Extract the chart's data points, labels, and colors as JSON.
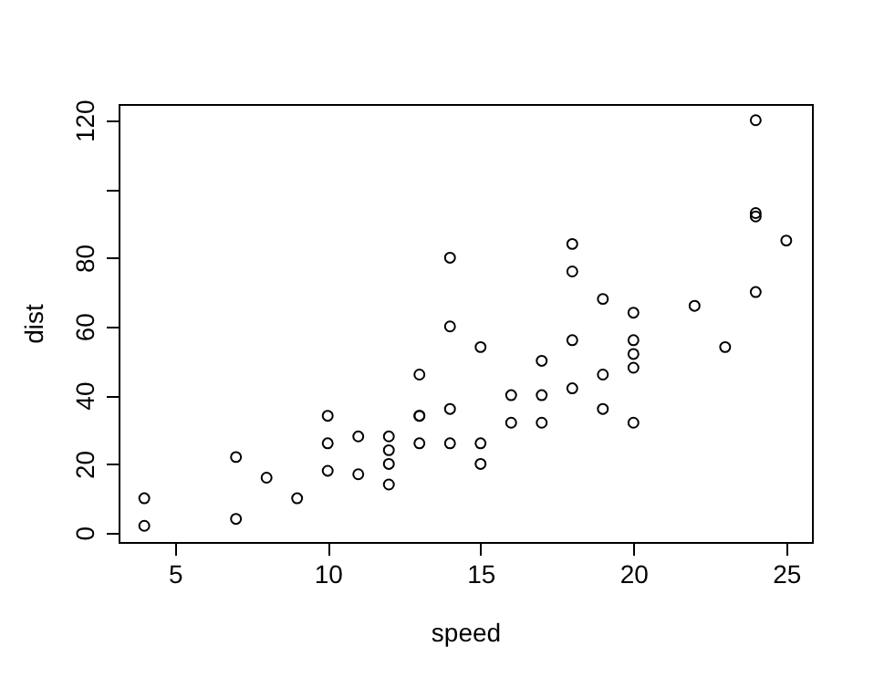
{
  "chart_data": {
    "type": "scatter",
    "xlabel": "speed",
    "ylabel": "dist",
    "marker": "circle",
    "grid": false,
    "x": [
      4,
      4,
      7,
      7,
      8,
      9,
      10,
      10,
      10,
      11,
      11,
      12,
      12,
      12,
      12,
      13,
      13,
      13,
      13,
      14,
      14,
      14,
      14,
      15,
      15,
      15,
      16,
      16,
      17,
      17,
      17,
      18,
      18,
      18,
      18,
      19,
      19,
      19,
      20,
      20,
      20,
      20,
      20,
      22,
      23,
      24,
      24,
      24,
      24,
      25
    ],
    "series": [
      {
        "color": "#000000",
        "values": [
          2,
          10,
          4,
          22,
          16,
          10,
          18,
          26,
          34,
          17,
          28,
          14,
          20,
          24,
          28,
          26,
          34,
          34,
          46,
          26,
          36,
          60,
          80,
          20,
          26,
          54,
          32,
          40,
          32,
          40,
          50,
          42,
          56,
          76,
          84,
          36,
          46,
          68,
          32,
          48,
          52,
          56,
          64,
          66,
          54,
          70,
          92,
          93,
          120,
          85
        ]
      }
    ],
    "xlim": [
      3.16,
      25.84
    ],
    "xticks": [
      5,
      10,
      15,
      20,
      25
    ],
    "ylim": [
      -2.72,
      124.72
    ],
    "yticks": [
      0,
      20,
      40,
      60,
      80,
      {
        "value": 100,
        "label": null
      },
      120
    ]
  }
}
